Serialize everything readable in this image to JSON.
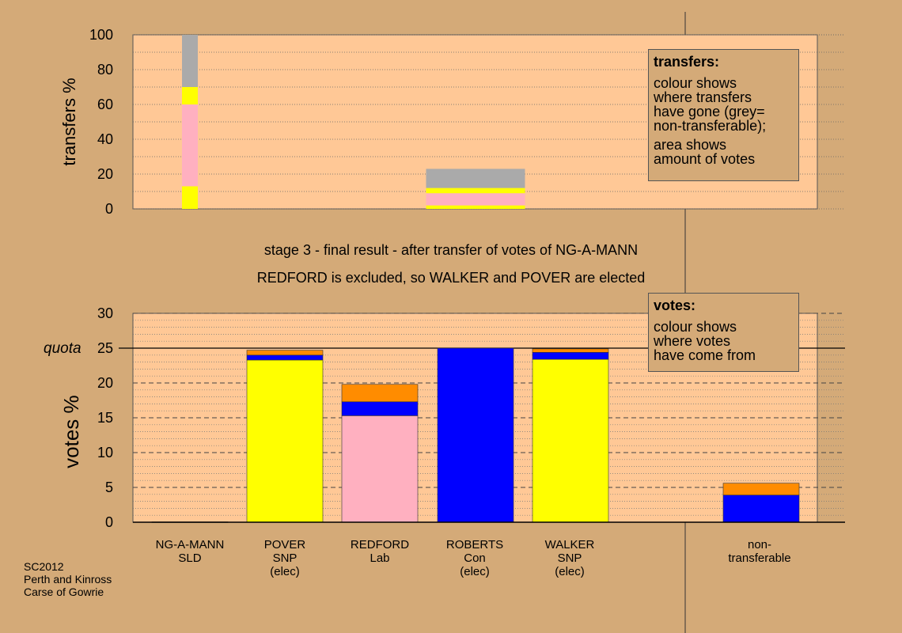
{
  "colors": {
    "background": "#d4aa78",
    "plot_background": "#ffc896",
    "SNP": "#ffff00",
    "Lab": "#ffb0c0",
    "Con": "#0000ff",
    "SLD": "#ff8c00",
    "non_transferable": "#aaaaaa"
  },
  "titles": {
    "line1": "stage 3 - final result - after transfer of votes of NG-A-MANN",
    "line2": "REDFORD is excluded, so WALKER and POVER are elected"
  },
  "notes": {
    "transfers": {
      "heading": "transfers:",
      "text1": "colour shows\nwhere transfers\nhave gone (grey=\nnon-transferable);",
      "text2": "area shows\namount of votes"
    },
    "votes": {
      "heading": "votes:",
      "text1": "colour shows\nwhere votes\nhave come from"
    }
  },
  "footer": {
    "line1": "SC2012",
    "line2": "Perth and Kinross",
    "line3": "Carse of Gowrie"
  },
  "candidates": [
    {
      "label": "NG-A-MANN\nSLD"
    },
    {
      "label": "POVER\nSNP\n(elec)"
    },
    {
      "label": "REDFORD\nLab"
    },
    {
      "label": "ROBERTS\nCon\n(elec)"
    },
    {
      "label": "WALKER\nSNP\n(elec)"
    },
    {
      "label": ""
    },
    {
      "label": "non-\ntransferable"
    }
  ],
  "chart_data": [
    {
      "type": "bar",
      "stacked": true,
      "ylabel": "transfers %",
      "ylim": [
        0,
        100
      ],
      "yticks": [
        0,
        20,
        40,
        60,
        80,
        100
      ],
      "columns": [
        {
          "category": "NG-A-MANN SLD",
          "width_fraction": 0.17,
          "segments": [
            {
              "color": "SNP",
              "value": 13
            },
            {
              "color": "Lab",
              "value": 47
            },
            {
              "color": "SNP",
              "value": 10
            },
            {
              "color": "non_transferable",
              "value": 30
            }
          ]
        },
        {
          "category": "ROBERTS Con",
          "width_fraction": 1.0,
          "segments": [
            {
              "color": "SNP",
              "value": 2
            },
            {
              "color": "Lab",
              "value": 7
            },
            {
              "color": "SNP",
              "value": 3
            },
            {
              "color": "non_transferable",
              "value": 11
            }
          ]
        }
      ]
    },
    {
      "type": "bar",
      "stacked": true,
      "ylabel": "votes %",
      "ylim": [
        0,
        30
      ],
      "yticks": [
        0,
        5,
        10,
        15,
        20,
        25,
        30
      ],
      "quota": 25,
      "quota_label": "quota",
      "categories": [
        "NG-A-MANN SLD",
        "POVER SNP (elec)",
        "REDFORD Lab",
        "ROBERTS Con (elec)",
        "WALKER SNP (elec)",
        "",
        "non-transferable"
      ],
      "columns": [
        {
          "category": "NG-A-MANN SLD",
          "segments": [
            {
              "color": "SLD",
              "value": 0.05
            }
          ]
        },
        {
          "category": "POVER SNP (elec)",
          "segments": [
            {
              "color": "SNP",
              "value": 23.3
            },
            {
              "color": "Con",
              "value": 0.7
            },
            {
              "color": "SLD",
              "value": 0.7
            }
          ]
        },
        {
          "category": "REDFORD Lab",
          "segments": [
            {
              "color": "Lab",
              "value": 15.3
            },
            {
              "color": "Con",
              "value": 2.0
            },
            {
              "color": "SLD",
              "value": 2.5
            }
          ]
        },
        {
          "category": "ROBERTS Con (elec)",
          "segments": [
            {
              "color": "Con",
              "value": 25.0
            }
          ]
        },
        {
          "category": "WALKER SNP (elec)",
          "segments": [
            {
              "color": "SNP",
              "value": 23.4
            },
            {
              "color": "Con",
              "value": 1.0
            },
            {
              "color": "SLD",
              "value": 0.5
            }
          ]
        },
        {
          "category": "",
          "segments": []
        },
        {
          "category": "non-transferable",
          "segments": [
            {
              "color": "Con",
              "value": 3.9
            },
            {
              "color": "SLD",
              "value": 1.7
            }
          ]
        }
      ]
    }
  ]
}
